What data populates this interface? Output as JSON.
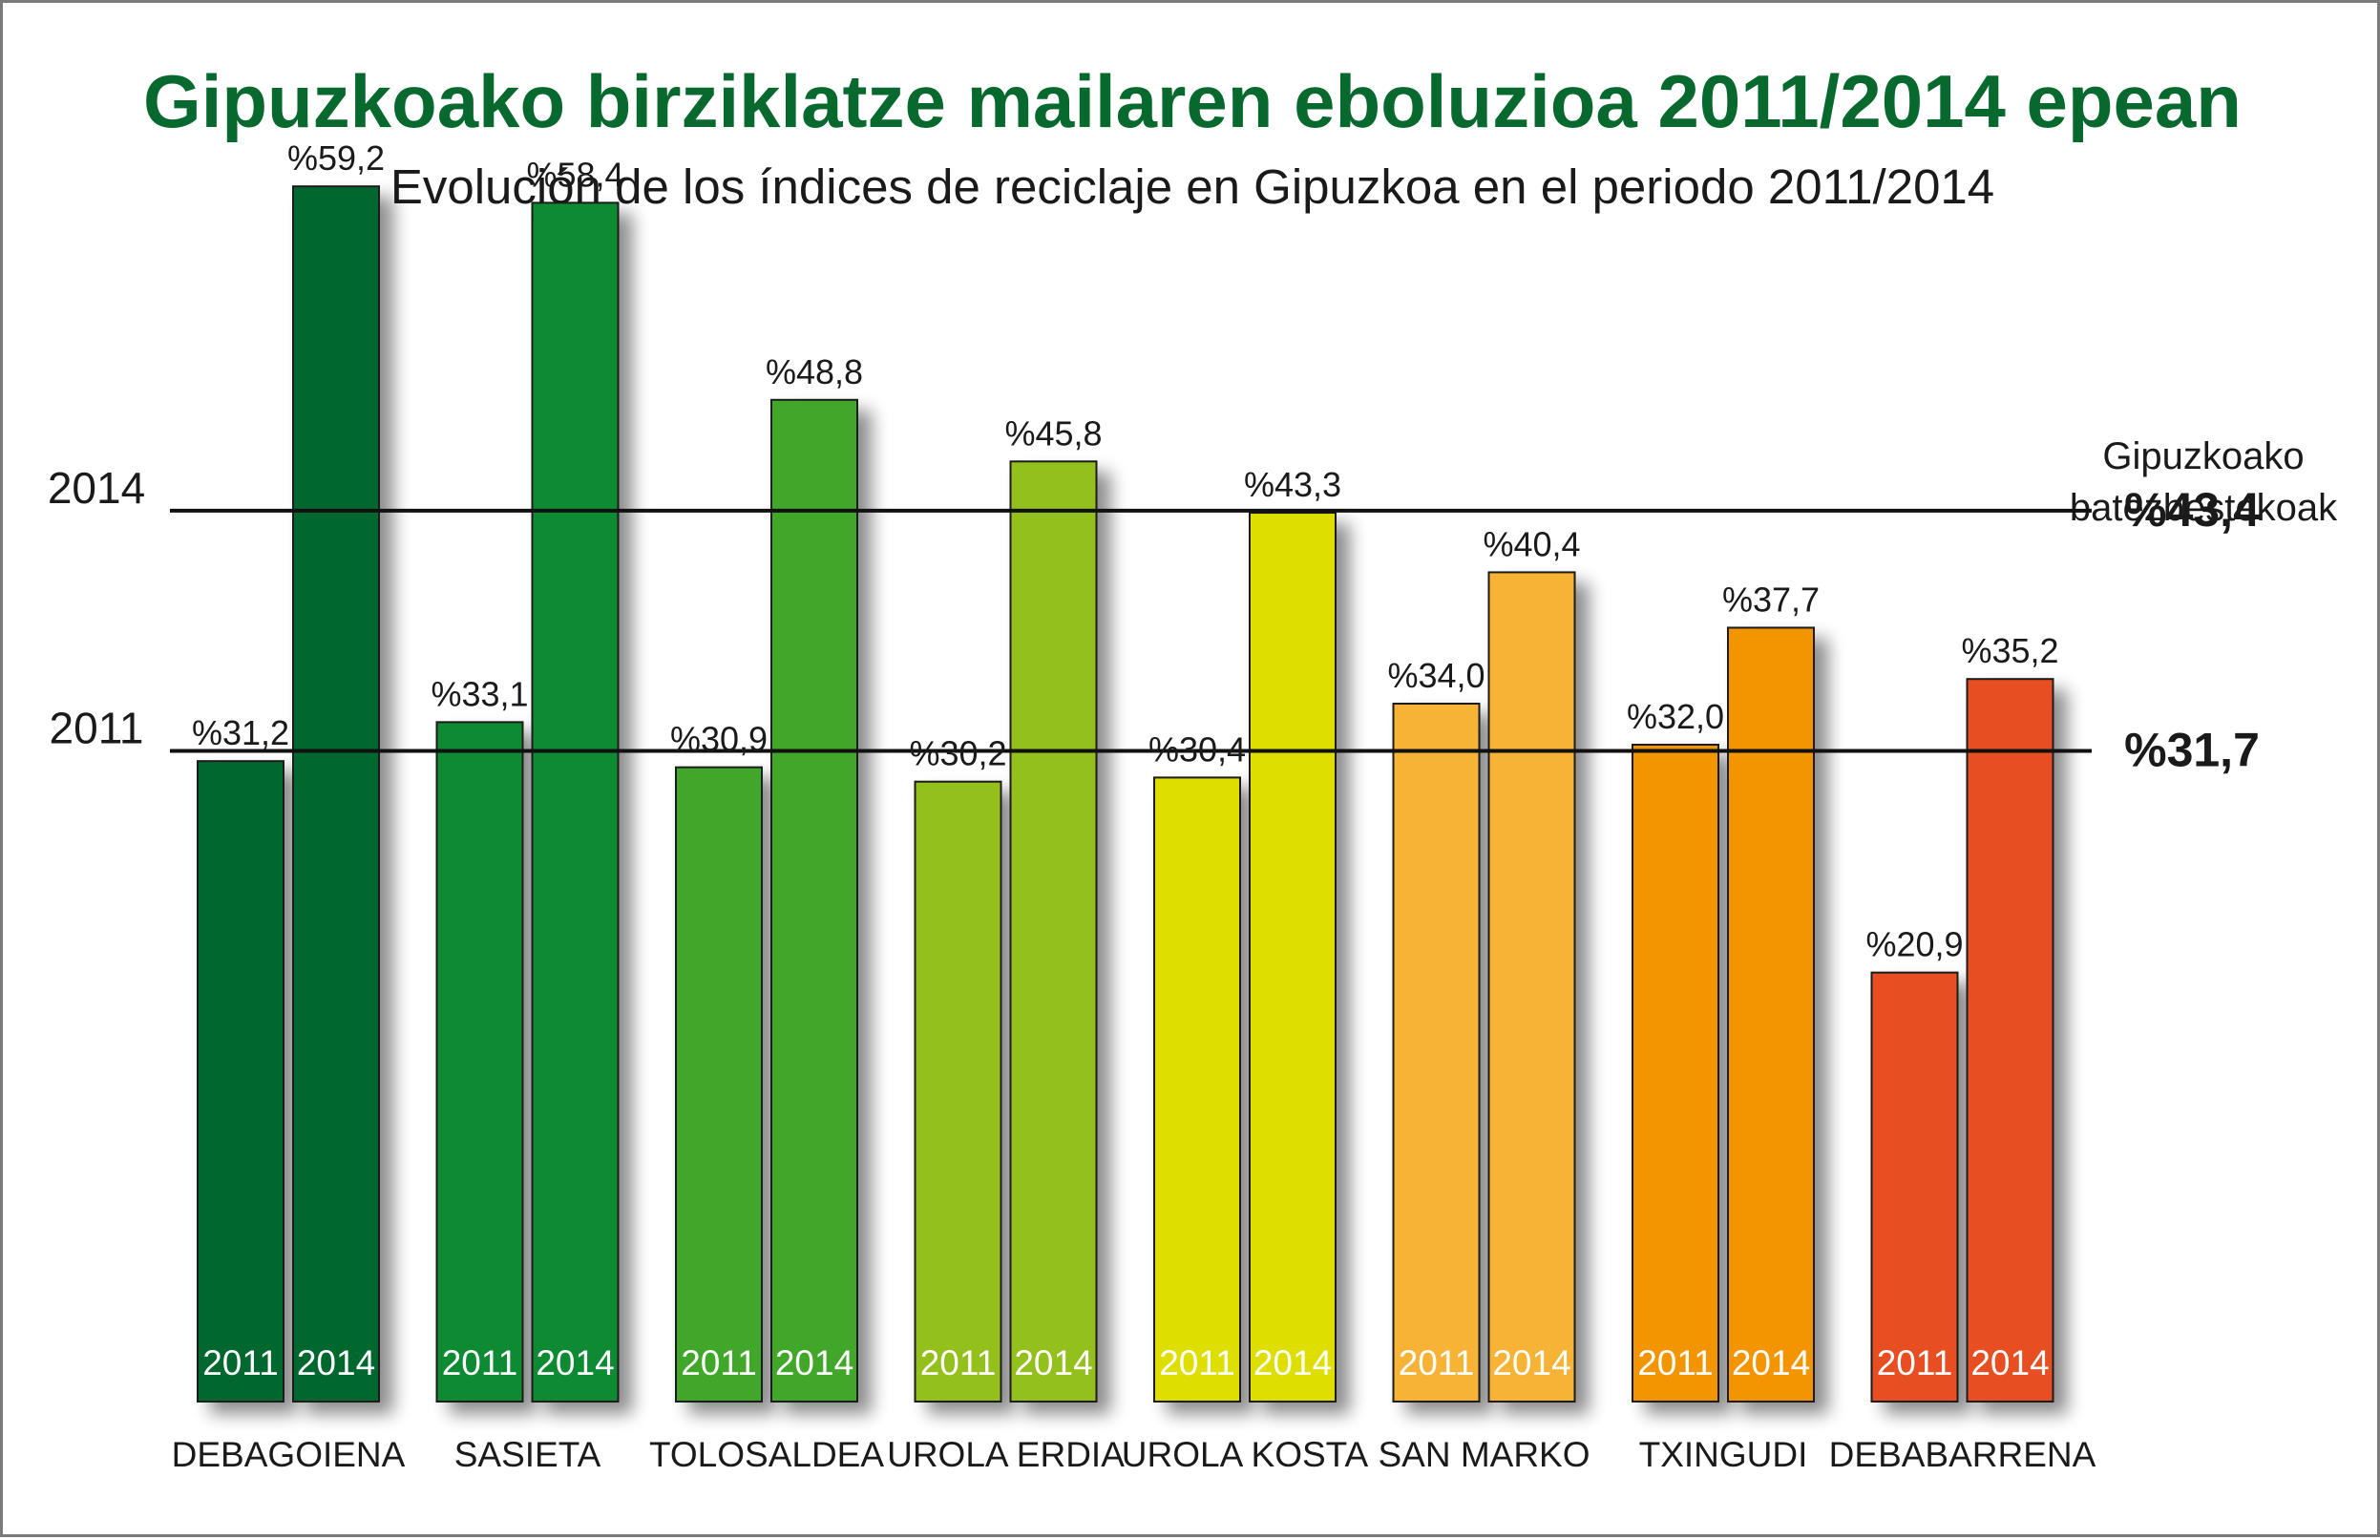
{
  "chart_data": {
    "type": "bar",
    "title": "Gipuzkoako birziklatze mailaren eboluzioa 2011/2014 epean",
    "subtitle": "Evolución de los índices de reciclaje en Gipuzkoa en el periodo 2011/2014",
    "categories": [
      "DEBAGOIENA",
      "SASIETA",
      "TOLOSALDEA",
      "UROLA ERDIA",
      "UROLA KOSTA",
      "SAN MARKO",
      "TXINGUDI",
      "DEBABARRENA"
    ],
    "series": [
      {
        "name": "2011",
        "values": [
          31.2,
          33.1,
          30.9,
          30.2,
          30.4,
          34.0,
          32.0,
          20.9
        ],
        "labels": [
          "%31,2",
          "%33,1",
          "%30,9",
          "%30,2",
          "%30,4",
          "%34,0",
          "%32,0",
          "%20,9"
        ]
      },
      {
        "name": "2014",
        "values": [
          59.2,
          58.4,
          48.8,
          45.8,
          43.3,
          40.4,
          37.7,
          35.2
        ],
        "labels": [
          "%59,2",
          "%58,4",
          "%48,8",
          "%45,8",
          "%43,3",
          "%40,4",
          "%37,7",
          "%35,2"
        ]
      }
    ],
    "colors": [
      "#02672f",
      "#0d8a31",
      "#3fa72b",
      "#93c01f",
      "#dede00",
      "#f6b336",
      "#f39505",
      "#e74f22"
    ],
    "reference_lines": [
      {
        "name": "2014",
        "value": 43.4,
        "label": "%43,4"
      },
      {
        "name": "2011",
        "value": 31.7,
        "label": "%31,7"
      }
    ],
    "reference_caption": [
      "Gipuzkoako",
      "batezbestekoak"
    ],
    "ylim": [
      0,
      59.2
    ],
    "grid": false,
    "legend": "none"
  }
}
